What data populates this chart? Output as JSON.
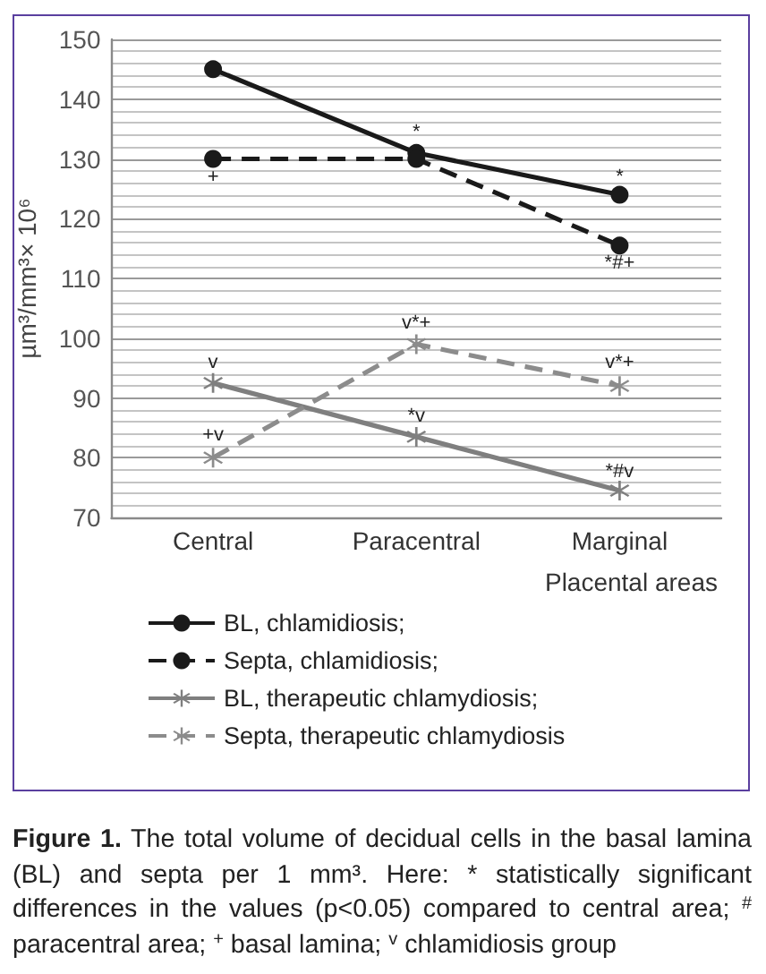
{
  "chart_data": {
    "type": "line",
    "categories": [
      "Central",
      "Paracentral",
      "Marginal"
    ],
    "series": [
      {
        "name": "BL, chlamidiosis;",
        "color": "#1a1a1a",
        "values": [
          145,
          131,
          124
        ],
        "marker": "circle",
        "line_style": "solid"
      },
      {
        "name": "Septa, chlamidiosis;",
        "color": "#1a1a1a",
        "values": [
          130,
          130,
          115.5
        ],
        "marker": "circle",
        "line_style": "dashed"
      },
      {
        "name": "BL, therapeutic chlamydiosis;",
        "color": "#7f7f7f",
        "values": [
          92.5,
          83.5,
          74.5
        ],
        "marker": "cross",
        "line_style": "solid"
      },
      {
        "name": "Septa, therapeutic chlamydiosis",
        "color": "#8c8c8c",
        "values": [
          80,
          99,
          92
        ],
        "marker": "cross",
        "line_style": "dashed"
      }
    ],
    "xlabel": "Placental areas",
    "ylabel": "µm³/mm³× 10⁶",
    "ylim": [
      70,
      150
    ],
    "yticks": [
      70,
      80,
      90,
      100,
      110,
      120,
      130,
      140,
      150
    ],
    "grid": "y",
    "legend": "bottom",
    "annotations": [
      {
        "text": "+",
        "x": "Central",
        "y": 128.6
      },
      {
        "text": "*",
        "x": "Paracentral",
        "y": 132.8
      },
      {
        "text": "*",
        "x": "Marginal",
        "y": 125.3
      },
      {
        "text": "*#+",
        "x": "Marginal",
        "y": 114.2
      },
      {
        "text": "v*+",
        "x": "Paracentral",
        "y": 100.8
      },
      {
        "text": "v*+",
        "x": "Marginal",
        "y": 94.2
      },
      {
        "text": "v",
        "x": "Central",
        "y": 94.3
      },
      {
        "text": "+v",
        "x": "Central",
        "y": 82.2
      },
      {
        "text": "*v",
        "x": "Paracentral",
        "y": 85.3
      },
      {
        "text": "*#v",
        "x": "Marginal",
        "y": 76
      },
      "Figure 1. The total volume of decidual cells in the basal lamina (BL) and septa per 1 mm³. Here: * statistically significant differences in the values (p<0.05) compared to central area; $^{#}$ paracentral area; $^{+}$ basal lamina; $^{v}$ chlamidiosis group"
    ]
  }
}
